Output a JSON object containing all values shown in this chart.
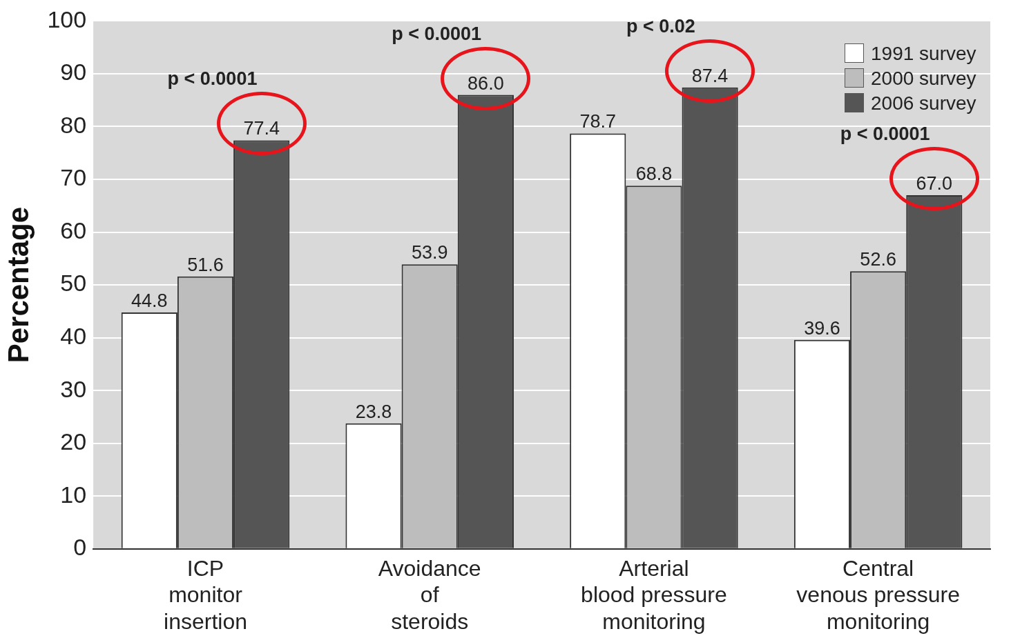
{
  "chart_data": {
    "type": "bar",
    "ylabel": "Percentage",
    "categories": [
      "ICP\nmonitor\ninsertion",
      "Avoidance\nof\nsteroids",
      "Arterial\nblood pressure\nmonitoring",
      "Central\nvenous pressure\nmonitoring"
    ],
    "series": [
      {
        "name": "1991 survey",
        "color": "#ffffff",
        "values": [
          44.8,
          23.8,
          78.7,
          39.6
        ],
        "value_labels": [
          "44.8",
          "23.8",
          "78.7",
          "39.6"
        ]
      },
      {
        "name": "2000 survey",
        "color": "#bdbdbd",
        "values": [
          51.6,
          53.9,
          68.8,
          52.6
        ],
        "value_labels": [
          "51.6",
          "53.9",
          "68.8",
          "52.6"
        ]
      },
      {
        "name": "2006 survey",
        "color": "#555555",
        "values": [
          77.4,
          86.0,
          87.4,
          67.0
        ],
        "value_labels": [
          "77.4",
          "86.0",
          "87.4",
          "67.0"
        ]
      }
    ],
    "ylim": [
      0,
      100
    ],
    "yticks": [
      0,
      10,
      20,
      30,
      40,
      50,
      60,
      70,
      80,
      90,
      100
    ],
    "grid": "y",
    "legend": "top right",
    "annotations": [
      "p < 0.0001",
      "p < 0.0001",
      "p < 0.02",
      "p < 0.0001"
    ]
  }
}
